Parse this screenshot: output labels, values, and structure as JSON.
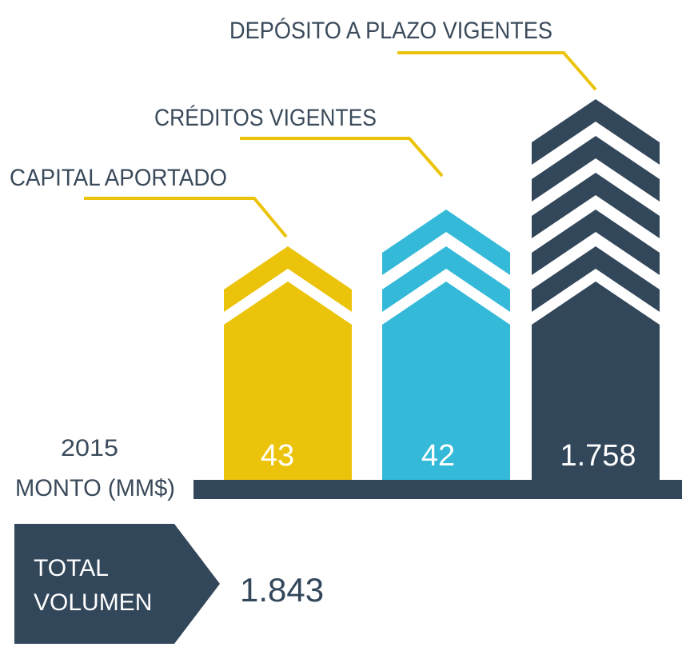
{
  "header": {
    "year": "2015",
    "unit": "MONTO (MM$)"
  },
  "items": [
    {
      "label": "CAPITAL APORTADO",
      "value": "43"
    },
    {
      "label": "CRÉDITOS VIGENTES",
      "value": "42"
    },
    {
      "label": "DEPÓSITO A PLAZO VIGENTES",
      "value": "1.758"
    }
  ],
  "total": {
    "label": [
      "TOTAL",
      "VOLUMEN"
    ],
    "value": "1.843"
  }
}
